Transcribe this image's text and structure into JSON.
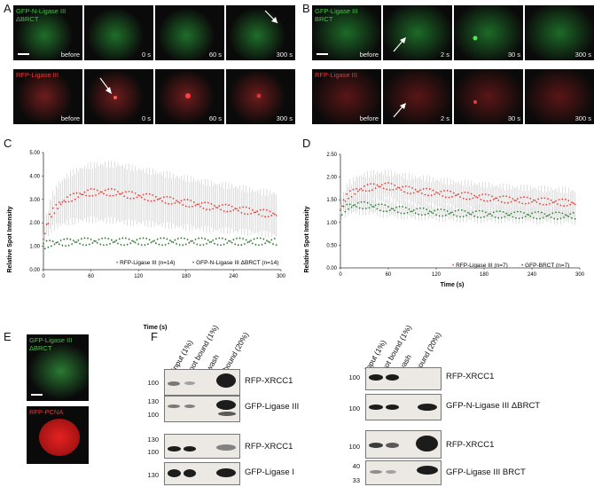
{
  "panels": {
    "A": "A",
    "B": "B",
    "C": "C",
    "D": "D",
    "E": "E",
    "F": "F"
  },
  "A": {
    "top_label_line1": "GFP-N-Ligase III",
    "top_label_line2": "ΔBRCT",
    "bottom_label": "RFP-Ligase III",
    "times": [
      "before",
      "0 s",
      "60 s",
      "300 s"
    ]
  },
  "B": {
    "top_label_line1": "GFP-Ligase III",
    "top_label_line2": "BRCT",
    "bottom_label": "RFP-Ligase III",
    "times": [
      "before",
      "2 s",
      "30 s",
      "300 s"
    ]
  },
  "E": {
    "top_label_line1": "GFP-Ligase III",
    "top_label_line2": "ΔBRCT",
    "bottom_label": "RFP-PCNA"
  },
  "F": {
    "lanes": [
      "input (1%)",
      "not bound (1%)",
      "wash",
      "bound (20%)"
    ],
    "left": [
      {
        "name": "RFP-XRCC1",
        "markers": [
          "100"
        ]
      },
      {
        "name": "GFP-Ligase III",
        "markers": [
          "130",
          "100"
        ]
      },
      {
        "name": "RFP-XRCC1",
        "markers": [
          "130",
          "100"
        ]
      },
      {
        "name": "GFP-Ligase I",
        "markers": [
          "130"
        ]
      }
    ],
    "right": [
      {
        "name": "RFP-XRCC1",
        "markers": [
          "100"
        ]
      },
      {
        "name": "GFP-N-Ligase III ΔBRCT",
        "markers": [
          "100"
        ]
      },
      {
        "name": "RFP-XRCC1",
        "markers": [
          "100"
        ]
      },
      {
        "name": "GFP-Ligase III BRCT",
        "markers": [
          "40",
          "33"
        ]
      }
    ]
  },
  "chart_data": [
    {
      "type": "scatter",
      "panel": "C",
      "xlabel": "Time (s)",
      "ylabel": "Relative Spot Intensity",
      "xlim": [
        0,
        300
      ],
      "ylim": [
        0,
        5
      ],
      "xticks": [
        "0",
        "60",
        "120",
        "180",
        "240",
        "300"
      ],
      "yticks": [
        "0.00",
        "1.00",
        "2.00",
        "3.00",
        "4.00",
        "5.00"
      ],
      "legend_position": "bottom-right",
      "series": [
        {
          "name": "RFP-Ligase III (n=14)",
          "color": "#e53935",
          "x": [
            0,
            5,
            10,
            20,
            30,
            45,
            60,
            75,
            90,
            105,
            120,
            150,
            180,
            210,
            240,
            270,
            295
          ],
          "y": [
            1.3,
            2.0,
            2.4,
            2.8,
            3.0,
            3.2,
            3.3,
            3.3,
            3.3,
            3.2,
            3.15,
            3.0,
            2.85,
            2.7,
            2.6,
            2.45,
            2.35
          ],
          "err": [
            0.2,
            0.5,
            0.7,
            0.9,
            1.0,
            1.1,
            1.15,
            1.2,
            1.2,
            1.2,
            1.15,
            1.1,
            1.05,
            1.0,
            0.95,
            0.9,
            0.9
          ]
        },
        {
          "name": "GFP-N-Ligase III ΔBRCT (n=14)",
          "color": "#2e7d32",
          "x": [
            0,
            5,
            10,
            20,
            30,
            45,
            60,
            75,
            90,
            105,
            120,
            150,
            180,
            210,
            240,
            270,
            295
          ],
          "y": [
            1.0,
            1.1,
            1.12,
            1.15,
            1.17,
            1.2,
            1.2,
            1.2,
            1.2,
            1.2,
            1.2,
            1.2,
            1.2,
            1.2,
            1.2,
            1.2,
            1.2
          ],
          "err": [
            0.03,
            0.05,
            0.05,
            0.05,
            0.06,
            0.06,
            0.06,
            0.06,
            0.06,
            0.06,
            0.06,
            0.06,
            0.06,
            0.06,
            0.06,
            0.06,
            0.06
          ]
        }
      ]
    },
    {
      "type": "scatter",
      "panel": "D",
      "xlabel": "Time (s)",
      "ylabel": "Relative Spot Intensity",
      "xlim": [
        0,
        300
      ],
      "ylim": [
        0,
        2.5
      ],
      "xticks": [
        "0",
        "60",
        "120",
        "180",
        "240",
        "300"
      ],
      "yticks": [
        "0.00",
        "0.50",
        "1.00",
        "1.50",
        "2.00",
        "2.50"
      ],
      "legend_position": "bottom-right",
      "series": [
        {
          "name": "RFP-Ligase III (n=7)",
          "color": "#e53935",
          "x": [
            0,
            5,
            10,
            20,
            30,
            45,
            60,
            75,
            90,
            105,
            120,
            150,
            180,
            210,
            240,
            270,
            295
          ],
          "y": [
            1.3,
            1.5,
            1.6,
            1.7,
            1.75,
            1.8,
            1.8,
            1.75,
            1.7,
            1.68,
            1.65,
            1.6,
            1.55,
            1.5,
            1.48,
            1.45,
            1.42
          ],
          "err": [
            0.1,
            0.2,
            0.25,
            0.3,
            0.3,
            0.3,
            0.3,
            0.3,
            0.3,
            0.3,
            0.28,
            0.28,
            0.28,
            0.28,
            0.28,
            0.28,
            0.28
          ]
        },
        {
          "name": "GFP-BRCT (n=7)",
          "color": "#2e7d32",
          "x": [
            0,
            5,
            10,
            20,
            30,
            45,
            60,
            75,
            90,
            105,
            120,
            150,
            180,
            210,
            240,
            270,
            295
          ],
          "y": [
            1.2,
            1.3,
            1.35,
            1.38,
            1.38,
            1.35,
            1.3,
            1.28,
            1.25,
            1.24,
            1.22,
            1.2,
            1.18,
            1.17,
            1.16,
            1.15,
            1.15
          ],
          "err": [
            0.08,
            0.12,
            0.14,
            0.15,
            0.15,
            0.15,
            0.14,
            0.14,
            0.14,
            0.13,
            0.13,
            0.13,
            0.13,
            0.13,
            0.13,
            0.13,
            0.13
          ]
        }
      ]
    }
  ]
}
